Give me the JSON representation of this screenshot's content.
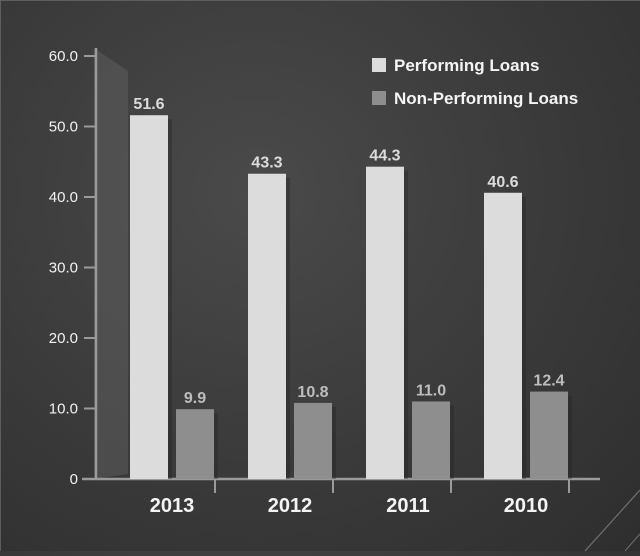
{
  "chart_data": {
    "type": "bar",
    "categories": [
      "2013",
      "2012",
      "2011",
      "2010"
    ],
    "series": [
      {
        "name": "Performing Loans",
        "values": [
          51.6,
          43.3,
          44.3,
          40.6
        ],
        "labels": [
          "51.6",
          "43.3",
          "44.3",
          "40.6"
        ],
        "color": "#dcdcdc"
      },
      {
        "name": "Non-Performing Loans",
        "values": [
          9.9,
          10.8,
          11.0,
          12.4
        ],
        "labels": [
          "9.9",
          "10.8",
          "11.0",
          "12.4"
        ],
        "color": "#8e8e8e"
      }
    ],
    "y_ticks": [
      "0",
      "10.0",
      "20.0",
      "30.0",
      "40.0",
      "50.0",
      "60.0"
    ],
    "ylim": [
      0,
      60
    ],
    "legend_position": "top-right",
    "grid": false,
    "colors": {
      "background": "#3a3a3a",
      "axis": "#9a9a9a",
      "performing_label": "#dcdcdc",
      "nonperforming_label": "#bdbdbd"
    }
  }
}
